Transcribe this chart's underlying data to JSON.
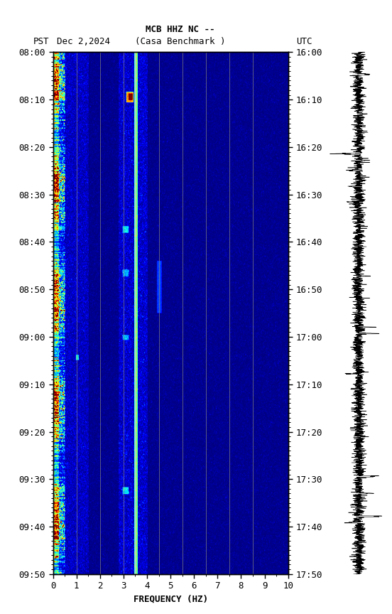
{
  "title_line1": "MCB HHZ NC --",
  "title_line2": "(Casa Benchmark )",
  "date_label": "Dec 2,2024",
  "left_tz": "PST",
  "right_tz": "UTC",
  "left_times": [
    "08:00",
    "08:10",
    "08:20",
    "08:30",
    "08:40",
    "08:50",
    "09:00",
    "09:10",
    "09:20",
    "09:30",
    "09:40",
    "09:50"
  ],
  "right_times": [
    "16:00",
    "16:10",
    "16:20",
    "16:30",
    "16:40",
    "16:50",
    "17:00",
    "17:10",
    "17:20",
    "17:30",
    "17:40",
    "17:50"
  ],
  "freq_min": 0,
  "freq_max": 10,
  "freq_ticks": [
    0,
    1,
    2,
    3,
    4,
    5,
    6,
    7,
    8,
    9,
    10
  ],
  "xlabel": "FREQUENCY (HZ)",
  "fig_bg": "#ffffff",
  "colormap": "jet",
  "waveform_color": "#000000",
  "vline_color": "#808080",
  "vline_bright_color": "#00ffff",
  "vline_freqs": [
    1.0,
    2.0,
    3.0,
    3.5,
    4.5,
    5.5,
    6.5,
    7.5,
    8.5
  ],
  "vline_bright_freq": 3.5,
  "spectrogram_seed": 42,
  "num_time_bins": 600,
  "num_freq_bins": 500,
  "waveform_seed": 99
}
